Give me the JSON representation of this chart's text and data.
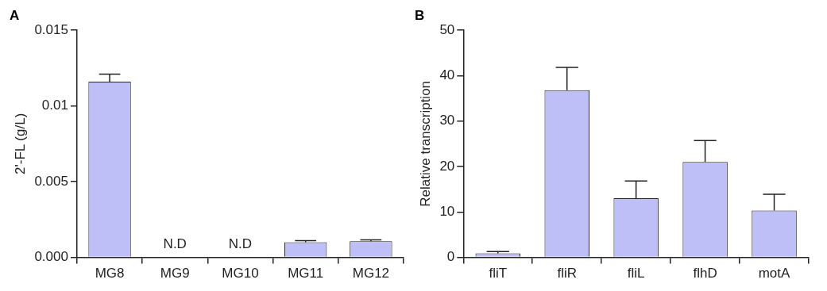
{
  "chart_data": [
    {
      "type": "bar",
      "title": "A",
      "ylabel": "2'-FL (g/L)",
      "categories": [
        "MG8",
        "MG9",
        "MG10",
        "MG11",
        "MG12"
      ],
      "series": [
        {
          "color": "#bfbff8",
          "values": [
            0.0116,
            null,
            null,
            0.001,
            0.00106
          ],
          "errors": [
            0.0005,
            null,
            null,
            0.0001,
            0.0001
          ]
        }
      ],
      "ylim": [
        0,
        0.015
      ],
      "yticks": [
        {
          "value": 0,
          "label": "0.000"
        },
        {
          "value": 0.005,
          "label": "0.005"
        },
        {
          "value": 0.01,
          "label": "0.01"
        },
        {
          "value": 0.015,
          "label": "0.015"
        }
      ],
      "annotations": [
        "N.D",
        "N.D"
      ],
      "grid": false,
      "legend": false
    },
    {
      "type": "bar",
      "title": "B",
      "ylabel": "Relative transcription",
      "categories": [
        "fliT",
        "fliR",
        "fliL",
        "flhD",
        "motA"
      ],
      "series": [
        {
          "color": "#bfbff8",
          "values": [
            0.9,
            36.8,
            13,
            21,
            10.3
          ],
          "errors": [
            0.4,
            5,
            3.8,
            4.7,
            3.6
          ]
        }
      ],
      "ylim": [
        0,
        50
      ],
      "yticks": [
        0,
        10,
        20,
        30,
        40,
        50
      ],
      "grid": false,
      "legend": false
    }
  ]
}
